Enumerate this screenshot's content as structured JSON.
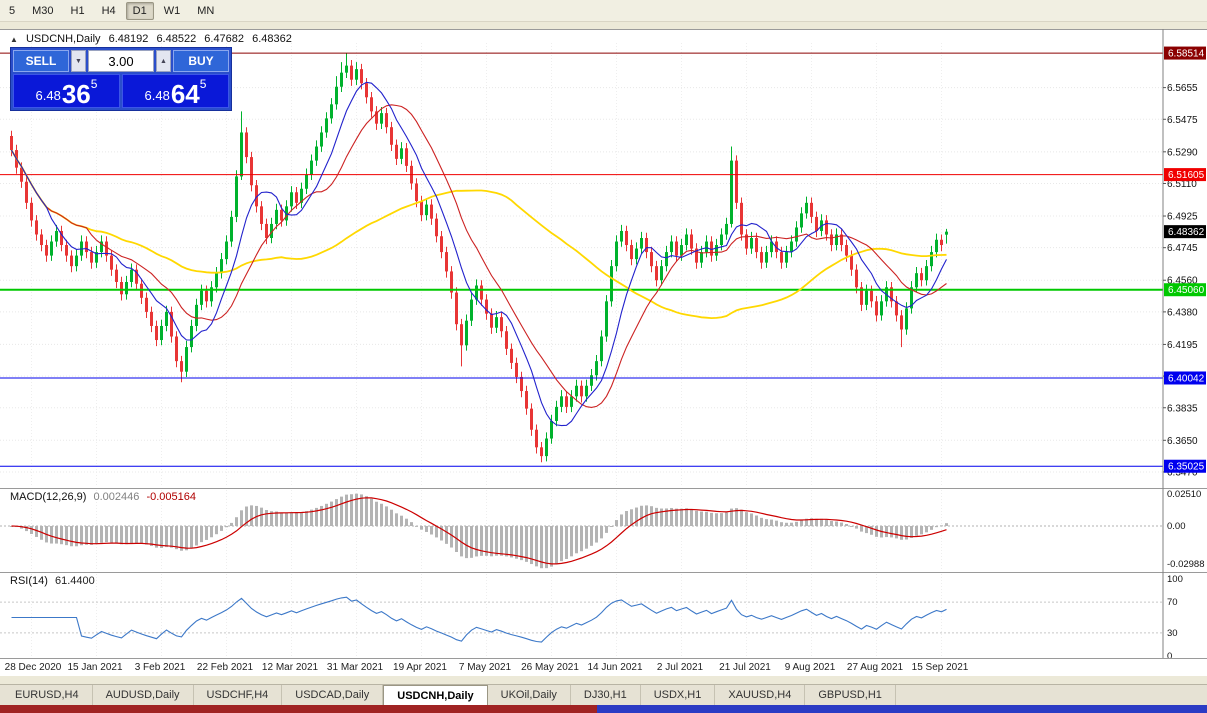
{
  "toolbar": {
    "timeframes": [
      "5",
      "M30",
      "H1",
      "H4",
      "D1",
      "W1",
      "MN"
    ],
    "active": "D1"
  },
  "icons": {
    "collapse": "▲",
    "stepper_down": "▼",
    "stepper_up": "▲"
  },
  "chart_header": {
    "symbol": "USDCNH,Daily",
    "open": "6.48192",
    "high": "6.48522",
    "low": "6.47682",
    "close": "6.48362"
  },
  "trade_panel": {
    "sell_label": "SELL",
    "buy_label": "BUY",
    "volume": "3.00",
    "sell_price": {
      "prefix": "6.48",
      "big": "36",
      "sup": "5"
    },
    "buy_price": {
      "prefix": "6.48",
      "big": "64",
      "sup": "5"
    }
  },
  "tabs": {
    "active": "USDCNH,Daily",
    "items": [
      "EURUSD,H4",
      "AUDUSD,Daily",
      "USDCHF,H4",
      "USDCAD,Daily",
      "USDCNH,Daily",
      "UKOil,Daily",
      "DJ30,H1",
      "USDX,H1",
      "XAUUSD,H4",
      "GBPUSD,H1"
    ]
  },
  "chart_data": {
    "type": "candlestick",
    "symbol": "USDCNH",
    "timeframe": "Daily",
    "colors": {
      "up": "#00b22d",
      "down": "#e83535"
    },
    "y_ticks": [
      "6.5655",
      "6.5475",
      "6.5290",
      "6.5110",
      "6.4925",
      "6.4745",
      "6.4560",
      "6.4380",
      "6.4195",
      "6.4015",
      "6.3835",
      "6.3650",
      "6.3470"
    ],
    "hlines": [
      {
        "price": 6.58514,
        "label": "6.58514",
        "color": "#8b0000",
        "width": 1
      },
      {
        "price": 6.51605,
        "label": "6.51605",
        "color": "#f00000",
        "width": 1
      },
      {
        "price": 6.4506,
        "label": "6.45060",
        "color": "#00c800",
        "width": 2
      },
      {
        "price": 6.40042,
        "label": "6.40042",
        "color": "#0000ee",
        "width": 1
      },
      {
        "price": 6.35025,
        "label": "6.35025",
        "color": "#0000ee",
        "width": 1
      }
    ],
    "current_price": {
      "value": 6.48362,
      "label": "6.48362",
      "box_color": "#000000"
    },
    "moving_averages": [
      {
        "period": 55,
        "color": "#ffd800",
        "width": 1.8
      },
      {
        "period": 16,
        "color": "#cc2222",
        "width": 1.1
      },
      {
        "period": 8,
        "color": "#2222cc",
        "width": 1.1
      }
    ],
    "x_labels": [
      "28 Dec 2020",
      "15 Jan 2021",
      "3 Feb 2021",
      "22 Feb 2021",
      "12 Mar 2021",
      "31 Mar 2021",
      "19 Apr 2021",
      "7 May 2021",
      "26 May 2021",
      "14 Jun 2021",
      "2 Jul 2021",
      "21 Jul 2021",
      "9 Aug 2021",
      "27 Aug 2021",
      "15 Sep 2021"
    ],
    "x_label_indices": [
      4,
      17,
      30,
      43,
      56,
      69,
      82,
      95,
      108,
      121,
      134,
      147,
      160,
      173,
      186
    ],
    "macd": {
      "title": "MACD(12,26,9)",
      "value_main": "0.002446",
      "value_signal": "-0.005164",
      "hist_color": "#b4b4b4",
      "signal_color": "#cc0000",
      "axis": [
        {
          "v": 0.0251,
          "label": "0.02510"
        },
        {
          "v": 0.0,
          "label": "0.00"
        },
        {
          "v": -0.02988,
          "label": "-0.02988"
        }
      ]
    },
    "rsi": {
      "title": "RSI(14)",
      "value": "61.4400",
      "line_color": "#3c78c8",
      "levels": [
        {
          "v": 100,
          "label": "100",
          "line": false
        },
        {
          "v": 70,
          "label": "70",
          "line": true
        },
        {
          "v": 30,
          "label": "30",
          "line": true
        },
        {
          "v": 0,
          "label": "0",
          "line": false
        }
      ]
    },
    "candles": [
      [
        6.538,
        6.541,
        6.5265,
        6.53
      ],
      [
        6.53,
        6.533,
        6.5165,
        6.52
      ],
      [
        6.52,
        6.523,
        6.5085,
        6.512
      ],
      [
        6.512,
        6.515,
        6.4965,
        6.5
      ],
      [
        6.5,
        6.503,
        6.4865,
        6.49
      ],
      [
        6.49,
        6.493,
        6.4785,
        6.482
      ],
      [
        6.482,
        6.485,
        6.4725,
        6.476
      ],
      [
        6.476,
        6.479,
        6.4665,
        6.47
      ],
      [
        6.47,
        6.4815,
        6.467,
        6.478
      ],
      [
        6.478,
        6.4875,
        6.475,
        6.484
      ],
      [
        6.484,
        6.487,
        6.4725,
        6.476
      ],
      [
        6.476,
        6.479,
        6.4665,
        6.47
      ],
      [
        6.47,
        6.473,
        6.4605,
        6.464
      ],
      [
        6.464,
        6.4735,
        6.461,
        6.47
      ],
      [
        6.47,
        6.4815,
        6.467,
        6.478
      ],
      [
        6.478,
        6.481,
        6.4685,
        6.472
      ],
      [
        6.472,
        6.475,
        6.4625,
        6.466
      ],
      [
        6.466,
        6.4755,
        6.463,
        6.472
      ],
      [
        6.472,
        6.4815,
        6.469,
        6.478
      ],
      [
        6.478,
        6.481,
        6.4665,
        6.47
      ],
      [
        6.47,
        6.473,
        6.4585,
        6.462
      ],
      [
        6.462,
        6.465,
        6.4515,
        6.455
      ],
      [
        6.455,
        6.458,
        6.4445,
        6.448
      ],
      [
        6.448,
        6.4585,
        6.445,
        6.455
      ],
      [
        6.455,
        6.4655,
        6.452,
        6.462
      ],
      [
        6.462,
        6.465,
        6.4505,
        6.454
      ],
      [
        6.454,
        6.457,
        6.4425,
        6.446
      ],
      [
        6.446,
        6.449,
        6.4345,
        6.438
      ],
      [
        6.438,
        6.441,
        6.4265,
        6.43
      ],
      [
        6.43,
        6.433,
        6.4185,
        6.422
      ],
      [
        6.422,
        6.4335,
        6.419,
        6.43
      ],
      [
        6.43,
        6.4415,
        6.427,
        6.438
      ],
      [
        6.438,
        6.441,
        6.4205,
        6.424
      ],
      [
        6.424,
        6.427,
        6.4065,
        6.41
      ],
      [
        6.41,
        6.413,
        6.398,
        6.404
      ],
      [
        6.404,
        6.4215,
        6.401,
        6.418
      ],
      [
        6.418,
        6.4335,
        6.415,
        6.43
      ],
      [
        6.43,
        6.4455,
        6.427,
        6.442
      ],
      [
        6.442,
        6.4535,
        6.439,
        6.45
      ],
      [
        6.45,
        6.453,
        6.4405,
        6.444
      ],
      [
        6.444,
        6.4555,
        6.441,
        6.452
      ],
      [
        6.452,
        6.4635,
        6.449,
        6.46
      ],
      [
        6.46,
        6.4715,
        6.457,
        6.468
      ],
      [
        6.468,
        6.4815,
        6.465,
        6.478
      ],
      [
        6.478,
        6.4955,
        6.475,
        6.492
      ],
      [
        6.492,
        6.5185,
        6.489,
        6.515
      ],
      [
        6.515,
        6.552,
        6.513,
        6.54
      ],
      [
        6.54,
        6.543,
        6.5225,
        6.526
      ],
      [
        6.526,
        6.529,
        6.5065,
        6.51
      ],
      [
        6.51,
        6.513,
        6.4945,
        6.498
      ],
      [
        6.498,
        6.501,
        6.4845,
        6.488
      ],
      [
        6.488,
        6.491,
        6.4765,
        6.48
      ],
      [
        6.48,
        6.4915,
        6.477,
        6.488
      ],
      [
        6.488,
        6.4995,
        6.485,
        6.496
      ],
      [
        6.496,
        6.499,
        6.4865,
        6.49
      ],
      [
        6.49,
        6.5015,
        6.487,
        6.498
      ],
      [
        6.498,
        6.5095,
        6.495,
        6.506
      ],
      [
        6.506,
        6.509,
        6.4965,
        6.5
      ],
      [
        6.5,
        6.5115,
        6.497,
        6.508
      ],
      [
        6.508,
        6.5195,
        6.505,
        6.516
      ],
      [
        6.516,
        6.5275,
        6.513,
        6.524
      ],
      [
        6.524,
        6.5355,
        6.521,
        6.532
      ],
      [
        6.532,
        6.5435,
        6.529,
        6.54
      ],
      [
        6.54,
        6.5515,
        6.537,
        6.548
      ],
      [
        6.548,
        6.5595,
        6.545,
        6.556
      ],
      [
        6.556,
        6.572,
        6.553,
        6.566
      ],
      [
        6.566,
        6.58,
        6.563,
        6.574
      ],
      [
        6.574,
        6.585,
        6.571,
        6.578
      ],
      [
        6.578,
        6.5812,
        6.5665,
        6.57
      ],
      [
        6.57,
        6.58,
        6.567,
        6.576
      ],
      [
        6.576,
        6.579,
        6.5645,
        6.568
      ],
      [
        6.568,
        6.571,
        6.5565,
        6.56
      ],
      [
        6.56,
        6.563,
        6.5485,
        6.552
      ],
      [
        6.552,
        6.555,
        6.5415,
        6.545
      ],
      [
        6.545,
        6.5545,
        6.542,
        6.551
      ],
      [
        6.551,
        6.554,
        6.5395,
        6.543
      ],
      [
        6.543,
        6.546,
        6.5295,
        6.533
      ],
      [
        6.533,
        6.536,
        6.5215,
        6.525
      ],
      [
        6.525,
        6.5345,
        6.522,
        6.531
      ],
      [
        6.531,
        6.534,
        6.5175,
        6.521
      ],
      [
        6.521,
        6.524,
        6.5075,
        6.511
      ],
      [
        6.511,
        6.514,
        6.4975,
        6.501
      ],
      [
        6.501,
        6.504,
        6.4895,
        6.493
      ],
      [
        6.493,
        6.5025,
        6.49,
        6.499
      ],
      [
        6.499,
        6.502,
        6.4875,
        6.491
      ],
      [
        6.491,
        6.494,
        6.4775,
        6.481
      ],
      [
        6.481,
        6.484,
        6.4685,
        6.472
      ],
      [
        6.472,
        6.475,
        6.4575,
        6.461
      ],
      [
        6.461,
        6.464,
        6.4455,
        6.449
      ],
      [
        6.449,
        6.452,
        6.4275,
        6.431
      ],
      [
        6.431,
        6.434,
        6.407,
        6.419
      ],
      [
        6.419,
        6.4365,
        6.416,
        6.433
      ],
      [
        6.433,
        6.4485,
        6.43,
        6.445
      ],
      [
        6.445,
        6.4565,
        6.442,
        6.453
      ],
      [
        6.453,
        6.456,
        6.4415,
        6.445
      ],
      [
        6.445,
        6.448,
        6.4335,
        6.437
      ],
      [
        6.437,
        6.44,
        6.4255,
        6.429
      ],
      [
        6.429,
        6.4385,
        6.426,
        6.435
      ],
      [
        6.435,
        6.438,
        6.4235,
        6.427
      ],
      [
        6.427,
        6.43,
        6.4135,
        6.417
      ],
      [
        6.417,
        6.42,
        6.4055,
        6.409
      ],
      [
        6.409,
        6.412,
        6.3975,
        6.401
      ],
      [
        6.401,
        6.404,
        6.3895,
        6.393
      ],
      [
        6.393,
        6.396,
        6.3795,
        6.383
      ],
      [
        6.383,
        6.386,
        6.3675,
        6.371
      ],
      [
        6.371,
        6.374,
        6.3575,
        6.361
      ],
      [
        6.361,
        6.364,
        6.3525,
        6.356
      ],
      [
        6.356,
        6.3695,
        6.353,
        6.366
      ],
      [
        6.366,
        6.3795,
        6.363,
        6.376
      ],
      [
        6.376,
        6.3875,
        6.373,
        6.384
      ],
      [
        6.384,
        6.3935,
        6.381,
        6.39
      ],
      [
        6.39,
        6.393,
        6.3805,
        6.384
      ],
      [
        6.384,
        6.3935,
        6.381,
        6.39
      ],
      [
        6.39,
        6.3995,
        6.387,
        6.396
      ],
      [
        6.396,
        6.399,
        6.3865,
        6.39
      ],
      [
        6.39,
        6.3995,
        6.387,
        6.396
      ],
      [
        6.396,
        6.4055,
        6.393,
        6.402
      ],
      [
        6.402,
        6.4135,
        6.399,
        6.41
      ],
      [
        6.41,
        6.4275,
        6.407,
        6.424
      ],
      [
        6.424,
        6.4475,
        6.421,
        6.444
      ],
      [
        6.444,
        6.4675,
        6.441,
        6.464
      ],
      [
        6.464,
        6.4815,
        6.461,
        6.478
      ],
      [
        6.478,
        6.4875,
        6.475,
        6.484
      ],
      [
        6.484,
        6.487,
        6.4725,
        6.476
      ],
      [
        6.476,
        6.479,
        6.4645,
        6.468
      ],
      [
        6.468,
        6.4775,
        6.465,
        6.474
      ],
      [
        6.474,
        6.4835,
        6.471,
        6.48
      ],
      [
        6.48,
        6.483,
        6.4685,
        6.472
      ],
      [
        6.472,
        6.475,
        6.4605,
        6.464
      ],
      [
        6.464,
        6.467,
        6.4525,
        6.456
      ],
      [
        6.456,
        6.4675,
        6.453,
        6.464
      ],
      [
        6.464,
        6.4755,
        6.461,
        6.472
      ],
      [
        6.472,
        6.4815,
        6.469,
        6.478
      ],
      [
        6.478,
        6.481,
        6.4665,
        6.47
      ],
      [
        6.47,
        6.4795,
        6.467,
        6.476
      ],
      [
        6.476,
        6.4855,
        6.473,
        6.482
      ],
      [
        6.482,
        6.485,
        6.4705,
        6.474
      ],
      [
        6.474,
        6.477,
        6.4625,
        6.466
      ],
      [
        6.466,
        6.4755,
        6.463,
        6.472
      ],
      [
        6.472,
        6.4815,
        6.469,
        6.478
      ],
      [
        6.478,
        6.481,
        6.4665,
        6.47
      ],
      [
        6.47,
        6.4795,
        6.467,
        6.476
      ],
      [
        6.476,
        6.4855,
        6.473,
        6.482
      ],
      [
        6.482,
        6.4915,
        6.479,
        6.488
      ],
      [
        6.488,
        6.532,
        6.486,
        6.524
      ],
      [
        6.524,
        6.527,
        6.4965,
        6.5
      ],
      [
        6.5,
        6.503,
        6.4785,
        6.482
      ],
      [
        6.482,
        6.485,
        6.4705,
        6.474
      ],
      [
        6.474,
        6.4835,
        6.471,
        6.48
      ],
      [
        6.48,
        6.483,
        6.4685,
        6.472
      ],
      [
        6.472,
        6.475,
        6.4625,
        6.466
      ],
      [
        6.466,
        6.4755,
        6.463,
        6.472
      ],
      [
        6.472,
        6.4815,
        6.469,
        6.478
      ],
      [
        6.478,
        6.481,
        6.4685,
        6.472
      ],
      [
        6.472,
        6.475,
        6.4625,
        6.466
      ],
      [
        6.466,
        6.4755,
        6.463,
        6.472
      ],
      [
        6.472,
        6.4815,
        6.469,
        6.478
      ],
      [
        6.478,
        6.4895,
        6.475,
        6.486
      ],
      [
        6.486,
        6.4975,
        6.483,
        6.494
      ],
      [
        6.494,
        6.5035,
        6.491,
        6.5
      ],
      [
        6.5,
        6.503,
        6.4885,
        6.492
      ],
      [
        6.492,
        6.495,
        6.4805,
        6.484
      ],
      [
        6.484,
        6.4935,
        6.481,
        6.49
      ],
      [
        6.49,
        6.493,
        6.4785,
        6.482
      ],
      [
        6.482,
        6.485,
        6.4725,
        6.476
      ],
      [
        6.476,
        6.4855,
        6.473,
        6.482
      ],
      [
        6.482,
        6.485,
        6.4725,
        6.476
      ],
      [
        6.476,
        6.479,
        6.4665,
        6.47
      ],
      [
        6.47,
        6.473,
        6.4585,
        6.462
      ],
      [
        6.462,
        6.465,
        6.4485,
        6.452
      ],
      [
        6.452,
        6.455,
        6.4385,
        6.442
      ],
      [
        6.442,
        6.4535,
        6.439,
        6.45
      ],
      [
        6.45,
        6.453,
        6.4405,
        6.444
      ],
      [
        6.444,
        6.447,
        6.4325,
        6.436
      ],
      [
        6.436,
        6.4475,
        6.433,
        6.444
      ],
      [
        6.444,
        6.4555,
        6.441,
        6.452
      ],
      [
        6.452,
        6.455,
        6.4405,
        6.444
      ],
      [
        6.444,
        6.447,
        6.4325,
        6.436
      ],
      [
        6.436,
        6.439,
        6.418,
        6.428
      ],
      [
        6.428,
        6.4435,
        6.425,
        6.44
      ],
      [
        6.44,
        6.4555,
        6.437,
        6.452
      ],
      [
        6.452,
        6.4635,
        6.449,
        6.46
      ],
      [
        6.46,
        6.463,
        6.4525,
        6.456
      ],
      [
        6.456,
        6.4675,
        6.453,
        6.464
      ],
      [
        6.464,
        6.4755,
        6.461,
        6.472
      ],
      [
        6.472,
        6.4825,
        6.469,
        6.479
      ],
      [
        6.479,
        6.482,
        6.4725,
        6.476
      ],
      [
        6.4819,
        6.4852,
        6.4768,
        6.4836
      ]
    ]
  }
}
